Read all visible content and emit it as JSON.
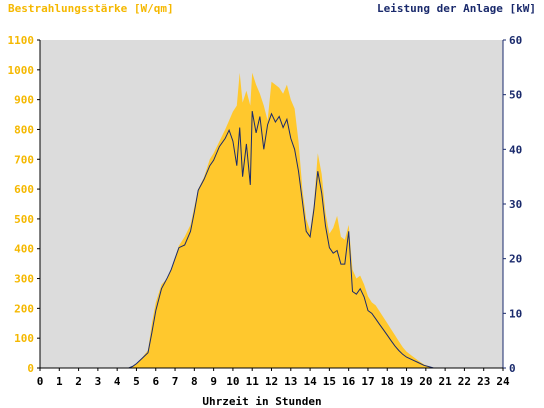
{
  "chart_data": {
    "type": "area",
    "ylabel_left": "Bestrahlungsstärke [W/qm]",
    "ylabel_right": "Leistung der Anlage [kW]",
    "xlabel": "Uhrzeit in Stunden",
    "xlim": [
      0,
      24
    ],
    "ylim_left": [
      0,
      1100
    ],
    "ylim_right": [
      0,
      60
    ],
    "grid": false,
    "x_ticks": [
      "0",
      "1",
      "2",
      "3",
      "4",
      "5",
      "6",
      "7",
      "8",
      "9",
      "10",
      "11",
      "12",
      "13",
      "14",
      "15",
      "16",
      "17",
      "18",
      "19",
      "20",
      "21",
      "22",
      "23",
      "24"
    ],
    "y_left_ticks": [
      "0",
      "100",
      "200",
      "300",
      "400",
      "500",
      "600",
      "700",
      "800",
      "900",
      "1000",
      "1100"
    ],
    "y_right_ticks": [
      "0",
      "10",
      "20",
      "30",
      "40",
      "50",
      "60"
    ],
    "colors": {
      "irradiance_fill": "#ffc82d",
      "power_line": "#1a2a6c",
      "plot_bg": "#dcdcdc",
      "left_axis_text": "#f5b800",
      "right_axis_text": "#1a2a6c"
    },
    "series": [
      {
        "axis": "left",
        "style": "area",
        "x": [
          0,
          4.6,
          4.8,
          5.0,
          5.3,
          5.6,
          5.8,
          6.0,
          6.3,
          6.6,
          6.8,
          7.0,
          7.2,
          7.5,
          7.8,
          8.0,
          8.2,
          8.5,
          8.8,
          9.0,
          9.3,
          9.6,
          9.8,
          10.0,
          10.2,
          10.35,
          10.5,
          10.7,
          10.9,
          11.0,
          11.2,
          11.4,
          11.6,
          11.8,
          12.0,
          12.2,
          12.4,
          12.6,
          12.8,
          13.0,
          13.2,
          13.4,
          13.6,
          13.8,
          14.0,
          14.2,
          14.4,
          14.6,
          14.8,
          15.0,
          15.2,
          15.4,
          15.6,
          15.8,
          16.0,
          16.2,
          16.4,
          16.6,
          16.8,
          17.0,
          17.2,
          17.4,
          17.6,
          17.8,
          18.0,
          18.2,
          18.4,
          18.6,
          18.8,
          19.0,
          19.3,
          19.6,
          19.9,
          20.2,
          20.4,
          24
        ],
        "y": [
          0,
          0,
          5,
          15,
          35,
          60,
          150,
          220,
          280,
          300,
          330,
          370,
          410,
          440,
          480,
          540,
          600,
          640,
          700,
          720,
          760,
          800,
          830,
          860,
          880,
          990,
          890,
          930,
          880,
          990,
          950,
          920,
          880,
          830,
          960,
          950,
          940,
          920,
          950,
          900,
          870,
          760,
          600,
          500,
          460,
          550,
          720,
          650,
          520,
          450,
          470,
          510,
          440,
          430,
          480,
          330,
          300,
          310,
          280,
          240,
          220,
          210,
          190,
          170,
          150,
          130,
          110,
          90,
          70,
          55,
          40,
          25,
          12,
          5,
          0,
          0
        ]
      },
      {
        "axis": "right",
        "style": "line",
        "x": [
          0,
          4.6,
          4.8,
          5.0,
          5.3,
          5.6,
          5.8,
          6.0,
          6.3,
          6.6,
          6.8,
          7.0,
          7.2,
          7.5,
          7.8,
          8.0,
          8.2,
          8.5,
          8.8,
          9.0,
          9.3,
          9.6,
          9.8,
          10.0,
          10.2,
          10.35,
          10.5,
          10.7,
          10.9,
          11.0,
          11.2,
          11.4,
          11.6,
          11.8,
          12.0,
          12.2,
          12.4,
          12.6,
          12.8,
          13.0,
          13.2,
          13.4,
          13.6,
          13.8,
          14.0,
          14.2,
          14.4,
          14.6,
          14.8,
          15.0,
          15.2,
          15.4,
          15.6,
          15.8,
          16.0,
          16.2,
          16.4,
          16.6,
          16.8,
          17.0,
          17.2,
          17.4,
          17.6,
          17.8,
          18.0,
          18.2,
          18.4,
          18.6,
          18.8,
          19.0,
          19.3,
          19.6,
          19.9,
          20.2,
          20.4,
          24
        ],
        "y": [
          0,
          0,
          0.3,
          0.8,
          1.8,
          2.8,
          6.5,
          10.5,
          14.5,
          16.5,
          18.0,
          20.0,
          22.0,
          22.5,
          25.0,
          28.5,
          32.5,
          34.5,
          37.0,
          38.0,
          40.5,
          42.0,
          43.5,
          41.5,
          37.0,
          44.0,
          35.0,
          41.0,
          33.5,
          47.0,
          43.0,
          46.0,
          40.0,
          44.5,
          46.5,
          45.0,
          46.0,
          44.0,
          45.5,
          42.0,
          40.0,
          36.0,
          30.5,
          25.0,
          24.0,
          29.0,
          36.0,
          32.0,
          26.0,
          22.0,
          21.0,
          21.5,
          19.0,
          19.0,
          25.0,
          14.0,
          13.5,
          14.5,
          13.0,
          10.5,
          10.0,
          9.0,
          8.0,
          7.0,
          6.0,
          5.0,
          4.0,
          3.2,
          2.5,
          2.0,
          1.5,
          1.0,
          0.5,
          0.2,
          0,
          0
        ]
      }
    ]
  }
}
